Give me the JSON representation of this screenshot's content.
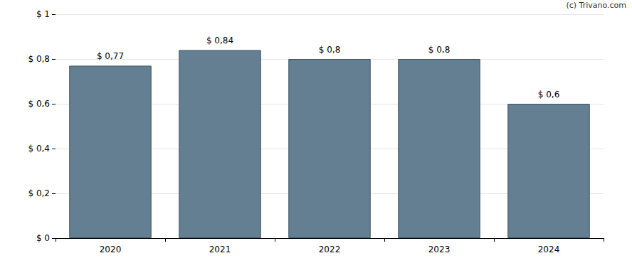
{
  "chart_data": {
    "type": "bar",
    "annotations": [
      "(c) Trivano.com"
    ],
    "categories": [
      "2020",
      "2021",
      "2022",
      "2023",
      "2024"
    ],
    "values": [
      0.77,
      0.84,
      0.8,
      0.8,
      0.6
    ],
    "value_labels": [
      "$ 0,77",
      "$ 0,84",
      "$ 0,8",
      "$ 0,8",
      "$ 0,6"
    ],
    "color": "#647f91",
    "ylim": [
      0,
      1
    ],
    "yticks": [
      {
        "value": 0,
        "label": "$ 0"
      },
      {
        "value": 0.2,
        "label": "$ 0,2"
      },
      {
        "value": 0.4,
        "label": "$ 0,4"
      },
      {
        "value": 0.6,
        "label": "$ 0,6"
      },
      {
        "value": 0.8,
        "label": "$ 0,8"
      },
      {
        "value": 1,
        "label": "$ 1"
      }
    ],
    "grid": true,
    "data_labels": true
  }
}
